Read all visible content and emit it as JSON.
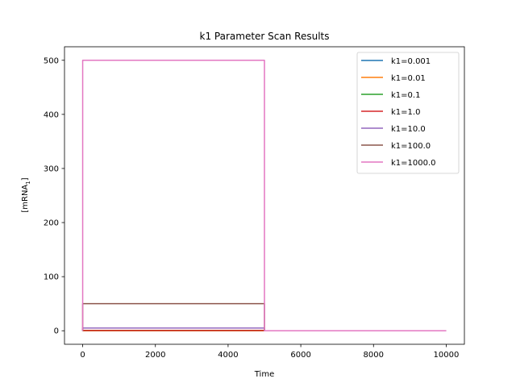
{
  "chart_data": {
    "type": "line",
    "title": "k1 Parameter Scan Results",
    "xlabel": "Time",
    "ylabel": "[mRNA",
    "ylabel_sub": "1",
    "ylabel_close": "]",
    "xlim": [
      -500,
      10500
    ],
    "ylim": [
      -25,
      525
    ],
    "xticks": [
      0,
      2000,
      4000,
      6000,
      8000,
      10000
    ],
    "yticks": [
      0,
      100,
      200,
      300,
      400,
      500
    ],
    "legend_position": "top-right",
    "grid": false,
    "series": [
      {
        "name": "k1=0.001",
        "color": "#1f77b4",
        "x": [
          0,
          0,
          5000,
          5000,
          10000
        ],
        "y": [
          0,
          0.005,
          0.005,
          0,
          0
        ]
      },
      {
        "name": "k1=0.01",
        "color": "#ff7f0e",
        "x": [
          0,
          0,
          5000,
          5000,
          10000
        ],
        "y": [
          0,
          0.05,
          0.05,
          0,
          0
        ]
      },
      {
        "name": "k1=0.1",
        "color": "#2ca02c",
        "x": [
          0,
          0,
          5000,
          5000,
          10000
        ],
        "y": [
          0,
          0.5,
          0.5,
          0,
          0
        ]
      },
      {
        "name": "k1=1.0",
        "color": "#d62728",
        "x": [
          0,
          0,
          5000,
          5000,
          10000
        ],
        "y": [
          0,
          0.5,
          0.5,
          0,
          0
        ]
      },
      {
        "name": "k1=10.0",
        "color": "#9467bd",
        "x": [
          0,
          0,
          5000,
          5000,
          10000
        ],
        "y": [
          0,
          5,
          5,
          0,
          0
        ]
      },
      {
        "name": "k1=100.0",
        "color": "#8c564b",
        "x": [
          0,
          0,
          5000,
          5000,
          10000
        ],
        "y": [
          0,
          50,
          50,
          0,
          0
        ]
      },
      {
        "name": "k1=1000.0",
        "color": "#e377c2",
        "x": [
          0,
          0,
          5000,
          5000,
          10000
        ],
        "y": [
          0,
          500,
          500,
          0,
          0
        ]
      }
    ]
  }
}
